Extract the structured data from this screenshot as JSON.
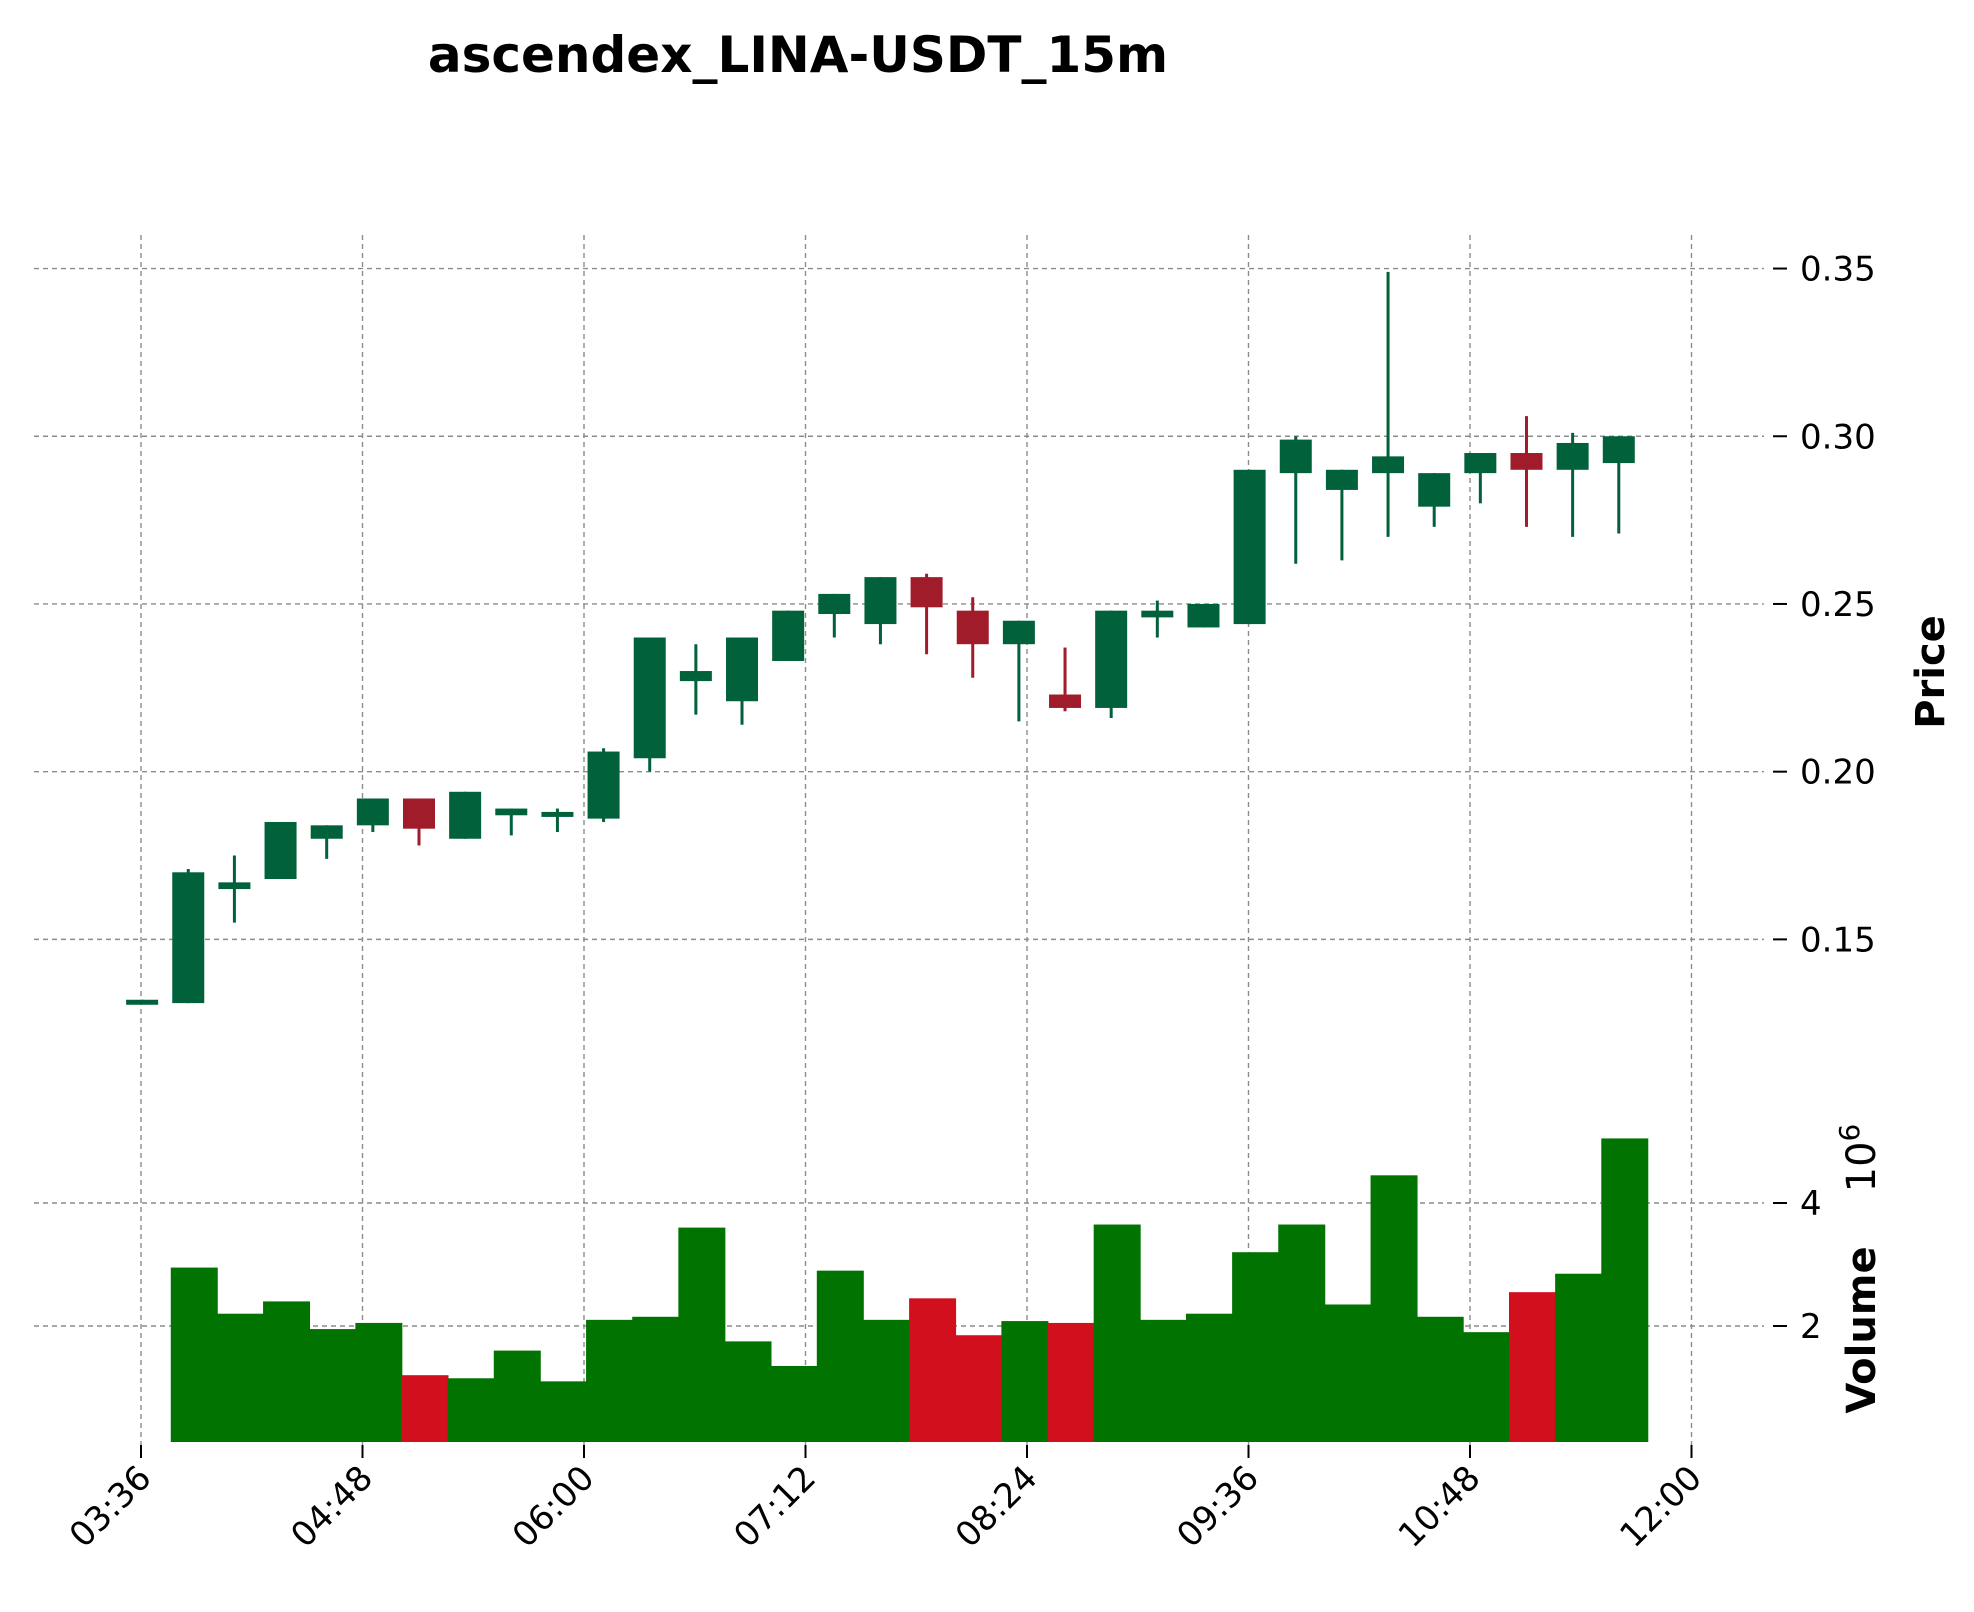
{
  "chart_data": {
    "type": "candlestick",
    "title": "ascendex_LINA-USDT_15m",
    "price_axis": {
      "label": "Price",
      "ticks": [
        "0.15",
        "0.20",
        "0.25",
        "0.30",
        "0.35"
      ],
      "ylim": [
        0.12,
        0.36
      ],
      "side": "right"
    },
    "volume_axis": {
      "label": "Volume",
      "multiplier": "10",
      "exponent": "6",
      "ticks": [
        "2",
        "4"
      ],
      "ylim": [
        0,
        4.9
      ],
      "side": "right"
    },
    "x_axis": {
      "tick_labels": [
        "03:36",
        "04:48",
        "06:00",
        "07:12",
        "08:24",
        "09:36",
        "10:48",
        "12:00"
      ],
      "tick_times_min": [
        216,
        288,
        360,
        432,
        504,
        576,
        648,
        720
      ],
      "range_min": [
        213,
        726
      ],
      "rotation_deg": 45
    },
    "grid": true,
    "colors": {
      "up_candle": "#00613a",
      "down_candle": "#a01c2a",
      "up_volume": "#007300",
      "down_volume": "#d20f1c",
      "grid": "#8c8c8c"
    },
    "candles": [
      {
        "time": "03:30",
        "open": 0.131,
        "high": 0.132,
        "low": 0.131,
        "close": 0.132,
        "volume": 0.05
      },
      {
        "time": "03:45",
        "open": 0.131,
        "high": 0.171,
        "low": 0.131,
        "close": 0.17,
        "volume": 2.95
      },
      {
        "time": "04:00",
        "open": 0.165,
        "high": 0.175,
        "low": 0.155,
        "close": 0.167,
        "volume": 2.2
      },
      {
        "time": "04:15",
        "open": 0.168,
        "high": 0.185,
        "low": 0.168,
        "close": 0.185,
        "volume": 2.4
      },
      {
        "time": "04:30",
        "open": 0.18,
        "high": 0.184,
        "low": 0.174,
        "close": 0.184,
        "volume": 1.95
      },
      {
        "time": "04:45",
        "open": 0.184,
        "high": 0.192,
        "low": 0.182,
        "close": 0.192,
        "volume": 2.05
      },
      {
        "time": "05:00",
        "open": 0.192,
        "high": 0.192,
        "low": 0.178,
        "close": 0.183,
        "volume": 1.2
      },
      {
        "time": "05:15",
        "open": 0.18,
        "high": 0.194,
        "low": 0.18,
        "close": 0.194,
        "volume": 1.15
      },
      {
        "time": "05:30",
        "open": 0.187,
        "high": 0.189,
        "low": 0.181,
        "close": 0.189,
        "volume": 1.6
      },
      {
        "time": "05:45",
        "open": 0.187,
        "high": 0.189,
        "low": 0.182,
        "close": 0.188,
        "volume": 1.1
      },
      {
        "time": "06:00",
        "open": 0.186,
        "high": 0.207,
        "low": 0.185,
        "close": 0.206,
        "volume": 2.1
      },
      {
        "time": "06:15",
        "open": 0.204,
        "high": 0.24,
        "low": 0.2,
        "close": 0.24,
        "volume": 2.15
      },
      {
        "time": "06:30",
        "open": 0.227,
        "high": 0.238,
        "low": 0.217,
        "close": 0.23,
        "volume": 3.6
      },
      {
        "time": "06:45",
        "open": 0.221,
        "high": 0.24,
        "low": 0.214,
        "close": 0.24,
        "volume": 1.75
      },
      {
        "time": "07:00",
        "open": 0.233,
        "high": 0.248,
        "low": 0.233,
        "close": 0.248,
        "volume": 1.35
      },
      {
        "time": "07:15",
        "open": 0.247,
        "high": 0.253,
        "low": 0.24,
        "close": 0.253,
        "volume": 2.9
      },
      {
        "time": "07:30",
        "open": 0.244,
        "high": 0.258,
        "low": 0.238,
        "close": 0.258,
        "volume": 2.1
      },
      {
        "time": "07:45",
        "open": 0.258,
        "high": 0.259,
        "low": 0.235,
        "close": 0.249,
        "volume": 2.45
      },
      {
        "time": "08:00",
        "open": 0.248,
        "high": 0.252,
        "low": 0.228,
        "close": 0.238,
        "volume": 1.85
      },
      {
        "time": "08:15",
        "open": 0.238,
        "high": 0.245,
        "low": 0.215,
        "close": 0.245,
        "volume": 2.08
      },
      {
        "time": "08:30",
        "open": 0.223,
        "high": 0.237,
        "low": 0.218,
        "close": 0.219,
        "volume": 2.05
      },
      {
        "time": "08:45",
        "open": 0.219,
        "high": 0.248,
        "low": 0.216,
        "close": 0.248,
        "volume": 3.65
      },
      {
        "time": "09:00",
        "open": 0.246,
        "high": 0.251,
        "low": 0.24,
        "close": 0.248,
        "volume": 2.1
      },
      {
        "time": "09:15",
        "open": 0.243,
        "high": 0.25,
        "low": 0.243,
        "close": 0.25,
        "volume": 2.2
      },
      {
        "time": "09:30",
        "open": 0.244,
        "high": 0.29,
        "low": 0.244,
        "close": 0.29,
        "volume": 3.2
      },
      {
        "time": "09:45",
        "open": 0.289,
        "high": 0.3,
        "low": 0.262,
        "close": 0.299,
        "volume": 3.65
      },
      {
        "time": "10:00",
        "open": 0.284,
        "high": 0.29,
        "low": 0.263,
        "close": 0.29,
        "volume": 2.35
      },
      {
        "time": "10:15",
        "open": 0.289,
        "high": 0.349,
        "low": 0.27,
        "close": 0.294,
        "volume": 4.45
      },
      {
        "time": "10:30",
        "open": 0.279,
        "high": 0.289,
        "low": 0.273,
        "close": 0.289,
        "volume": 2.15
      },
      {
        "time": "10:45",
        "open": 0.289,
        "high": 0.295,
        "low": 0.28,
        "close": 0.295,
        "volume": 1.9
      },
      {
        "time": "11:00",
        "open": 0.295,
        "high": 0.306,
        "low": 0.273,
        "close": 0.29,
        "volume": 2.55
      },
      {
        "time": "11:15",
        "open": 0.29,
        "high": 0.301,
        "low": 0.27,
        "close": 0.298,
        "volume": 2.85
      },
      {
        "time": "11:30",
        "open": 0.292,
        "high": 0.3,
        "low": 0.271,
        "close": 0.3,
        "volume": 5.05
      }
    ]
  }
}
